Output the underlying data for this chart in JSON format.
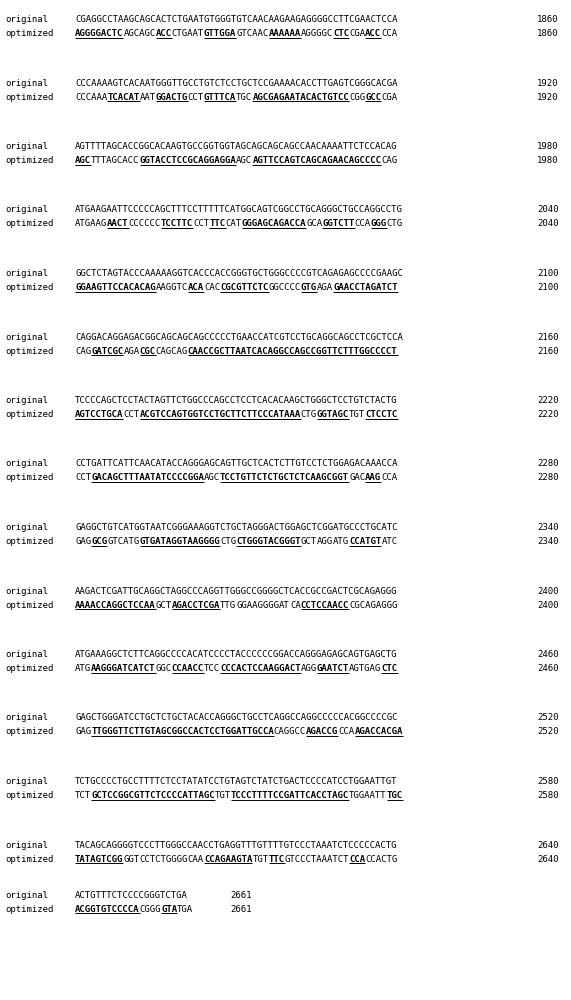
{
  "rows": [
    {
      "original": "CGAGGCCTAAGCAGCACTCTGAATGTGGGTGTCAACAAGAAGAGGGGCCTTCGAACTCCA",
      "optimized_parts": [
        {
          "text": "AGGGGACTC",
          "bold": true,
          "underline": true
        },
        {
          "text": "AGCAGC",
          "bold": false,
          "underline": false
        },
        {
          "text": "ACC",
          "bold": true,
          "underline": true
        },
        {
          "text": "CTGAAT",
          "bold": false,
          "underline": false
        },
        {
          "text": "GTTGGA",
          "bold": true,
          "underline": true
        },
        {
          "text": "GTCAAC",
          "bold": false,
          "underline": false
        },
        {
          "text": "AAAAAA",
          "bold": true,
          "underline": true
        },
        {
          "text": "AGGGGC",
          "bold": false,
          "underline": false
        },
        {
          "text": "CTC",
          "bold": true,
          "underline": true
        },
        {
          "text": "CGA",
          "bold": false,
          "underline": false
        },
        {
          "text": "ACC",
          "bold": true,
          "underline": true
        },
        {
          "text": "CCA",
          "bold": false,
          "underline": false
        }
      ],
      "number": 1860
    },
    {
      "original": "CCCAAAAGTCACAATGGGTTGCCTGTCTCCTGCTCCGAAAACACCTTGAGTCGGGCACGA",
      "optimized_parts": [
        {
          "text": "CCCAAA",
          "bold": false,
          "underline": false
        },
        {
          "text": "TCACAT",
          "bold": true,
          "underline": true
        },
        {
          "text": "AAT",
          "bold": false,
          "underline": false
        },
        {
          "text": "GGACTG",
          "bold": true,
          "underline": true
        },
        {
          "text": "CCT",
          "bold": false,
          "underline": false
        },
        {
          "text": "GTTTCA",
          "bold": true,
          "underline": true
        },
        {
          "text": "TGC",
          "bold": false,
          "underline": false
        },
        {
          "text": "AGCGAGAATACACTGTCC",
          "bold": true,
          "underline": true
        },
        {
          "text": "CGG",
          "bold": false,
          "underline": false
        },
        {
          "text": "GCC",
          "bold": true,
          "underline": true
        },
        {
          "text": "CGA",
          "bold": false,
          "underline": false
        }
      ],
      "number": 1920
    },
    {
      "original": "AGTTTTAGCACCGGCACAAGTGCCGGTGGTAGCAGCAGCAGCCAACAAAATTCTCCACAG",
      "optimized_parts": [
        {
          "text": "AGC",
          "bold": true,
          "underline": true
        },
        {
          "text": "TTTAGCACC",
          "bold": false,
          "underline": false
        },
        {
          "text": "GGTACCTCCGCAGGAGGA",
          "bold": true,
          "underline": true
        },
        {
          "text": "AGC",
          "bold": false,
          "underline": false
        },
        {
          "text": "AGTTCCAGTCAGCAGAACAGCCCC",
          "bold": true,
          "underline": true
        },
        {
          "text": "CAG",
          "bold": false,
          "underline": false
        }
      ],
      "number": 1980
    },
    {
      "original": "ATGAAGAATTCCCCCAGCTTTCCTTTTTCATGGCAGTCGGCCTGCAGGGCTGCCAGGCCTG",
      "optimized_parts": [
        {
          "text": "ATGAAG",
          "bold": false,
          "underline": false
        },
        {
          "text": "AACT",
          "bold": true,
          "underline": true
        },
        {
          "text": "CCCCCC",
          "bold": false,
          "underline": false
        },
        {
          "text": "TCCTTC",
          "bold": true,
          "underline": true
        },
        {
          "text": "CCT",
          "bold": false,
          "underline": false
        },
        {
          "text": "TTC",
          "bold": true,
          "underline": true
        },
        {
          "text": "CAT",
          "bold": false,
          "underline": false
        },
        {
          "text": "GGGAGCAGACCA",
          "bold": true,
          "underline": true
        },
        {
          "text": "GCA",
          "bold": false,
          "underline": false
        },
        {
          "text": "GGTCTT",
          "bold": true,
          "underline": true
        },
        {
          "text": "CCA",
          "bold": false,
          "underline": false
        },
        {
          "text": "GGG",
          "bold": true,
          "underline": true
        },
        {
          "text": "CTG",
          "bold": false,
          "underline": false
        }
      ],
      "number": 2040
    },
    {
      "original": "GGCTCTAGTACCCAAAAAGGTCACCCACCGGGTGCTGGGCCCCGTCAGAGAGCCCCGAAGC",
      "optimized_parts": [
        {
          "text": "GGAAGTTCCACACAG",
          "bold": true,
          "underline": true
        },
        {
          "text": "AAGGTC",
          "bold": false,
          "underline": false
        },
        {
          "text": "ACA",
          "bold": true,
          "underline": true
        },
        {
          "text": "CAC",
          "bold": false,
          "underline": false
        },
        {
          "text": "CGCGTTCTC",
          "bold": true,
          "underline": true
        },
        {
          "text": "GGCCCC",
          "bold": false,
          "underline": false
        },
        {
          "text": "GTG",
          "bold": true,
          "underline": true
        },
        {
          "text": "AGA",
          "bold": false,
          "underline": false
        },
        {
          "text": "GAACCTAGATCT",
          "bold": true,
          "underline": true
        }
      ],
      "number": 2100
    },
    {
      "original": "CAGGACAGGAGACGGCAGCAGCAGCCCCCTGAACCATCGTCCTGCAGGCAGCCTCGCTCCA",
      "optimized_parts": [
        {
          "text": "CAG",
          "bold": false,
          "underline": false
        },
        {
          "text": "GATCGC",
          "bold": true,
          "underline": true
        },
        {
          "text": "AGA",
          "bold": false,
          "underline": false
        },
        {
          "text": "CGC",
          "bold": true,
          "underline": true
        },
        {
          "text": "CAGCAG",
          "bold": false,
          "underline": false
        },
        {
          "text": "CAACCGCTTAATCACAGGCCAGCCGGTTCTTTGGCCCCT",
          "bold": true,
          "underline": true
        }
      ],
      "number": 2160
    },
    {
      "original": "TCCCCAGCTCCTACTAGTTCTGGCCCAGCCTCCTCACACAAGCTGGGCTCCTGTCTACTG",
      "optimized_parts": [
        {
          "text": "AGTCCTGCA",
          "bold": true,
          "underline": true
        },
        {
          "text": "CCT",
          "bold": false,
          "underline": false
        },
        {
          "text": "ACGTCCAGTGGTCCTGCTTCTTCCCATAAA",
          "bold": true,
          "underline": true
        },
        {
          "text": "CTG",
          "bold": false,
          "underline": false
        },
        {
          "text": "GGTAGC",
          "bold": true,
          "underline": true
        },
        {
          "text": "TGT",
          "bold": false,
          "underline": false
        },
        {
          "text": "CTCCTC",
          "bold": true,
          "underline": true
        }
      ],
      "number": 2220
    },
    {
      "original": "CCTGATTCATTCAACATACCAGGGAGCAGTTGCTCACTCTTGTCCTCTGGAGACAAACCA",
      "optimized_parts": [
        {
          "text": "CCT",
          "bold": false,
          "underline": false
        },
        {
          "text": "GACAGCTTTAATATCCCCGGA",
          "bold": true,
          "underline": true
        },
        {
          "text": "AGC",
          "bold": false,
          "underline": false
        },
        {
          "text": "TCCTGTTCTCTGCTCTCAAGCGGT",
          "bold": true,
          "underline": true
        },
        {
          "text": "GAC",
          "bold": false,
          "underline": false
        },
        {
          "text": "AAG",
          "bold": true,
          "underline": true
        },
        {
          "text": "CCA",
          "bold": false,
          "underline": false
        }
      ],
      "number": 2280
    },
    {
      "original": "GAGGCTGTCATGGTAATCGGGAAAGGTCTGCTAGGGACTGGAGCTCGGATGCCCTGCATC",
      "optimized_parts": [
        {
          "text": "GAG",
          "bold": false,
          "underline": false
        },
        {
          "text": "GCG",
          "bold": true,
          "underline": true
        },
        {
          "text": "GTCATG",
          "bold": false,
          "underline": false
        },
        {
          "text": "GTGATAGGTAAGGGG",
          "bold": true,
          "underline": true
        },
        {
          "text": "CTG",
          "bold": false,
          "underline": false
        },
        {
          "text": "CTGGGTACGGGT",
          "bold": true,
          "underline": true
        },
        {
          "text": "GCT",
          "bold": false,
          "underline": false
        },
        {
          "text": "AGG",
          "bold": false,
          "underline": false
        },
        {
          "text": "ATG",
          "bold": false,
          "underline": false
        },
        {
          "text": "CCATGT",
          "bold": true,
          "underline": true
        },
        {
          "text": "ATC",
          "bold": false,
          "underline": false
        }
      ],
      "number": 2340
    },
    {
      "original": "AAGACTCGATTGCAGGCTAGGCCCAGGTTGGGCCGGGGCTCACCGCCGACTCGCAGAGGG",
      "optimized_parts": [
        {
          "text": "AAAACCAGGCTCCAA",
          "bold": true,
          "underline": true
        },
        {
          "text": "GCT",
          "bold": false,
          "underline": false
        },
        {
          "text": "AGACCTCGA",
          "bold": true,
          "underline": true
        },
        {
          "text": "TTG",
          "bold": false,
          "underline": false
        },
        {
          "text": "GGAAGGGG",
          "bold": false,
          "underline": false
        },
        {
          "text": "AT",
          "bold": false,
          "underline": false
        },
        {
          "text": "CA",
          "bold": false,
          "underline": false
        },
        {
          "text": "CCTCCAACC",
          "bold": true,
          "underline": true
        },
        {
          "text": "CGCAGAGGG",
          "bold": false,
          "underline": false
        }
      ],
      "number": 2400
    },
    {
      "original": "ATGAAAGGCTCTTCAGGCCCCACATCCCCTACCCCCCGGACCAGGGAGAGCAGTGAGCTG",
      "optimized_parts": [
        {
          "text": "ATG",
          "bold": false,
          "underline": false
        },
        {
          "text": "AAGGGATCATCT",
          "bold": true,
          "underline": true
        },
        {
          "text": "GGC",
          "bold": false,
          "underline": false
        },
        {
          "text": "CCAACC",
          "bold": true,
          "underline": true
        },
        {
          "text": "TCC",
          "bold": false,
          "underline": false
        },
        {
          "text": "CCCACTCCAAGGACT",
          "bold": true,
          "underline": true
        },
        {
          "text": "AGG",
          "bold": false,
          "underline": false
        },
        {
          "text": "GAATCT",
          "bold": true,
          "underline": true
        },
        {
          "text": "AGTGAG",
          "bold": false,
          "underline": false
        },
        {
          "text": "CTC",
          "bold": true,
          "underline": true
        }
      ],
      "number": 2460
    },
    {
      "original": "GAGCTGGGATCCTGCTCTGCTACACCAGGGCTGCCTCAGGCCAGGCCCCCACGGCCCCGC",
      "optimized_parts": [
        {
          "text": "GAG",
          "bold": false,
          "underline": false
        },
        {
          "text": "TTGGGTTCTTGTAGCGGCCACTCCTGGATTGCCA",
          "bold": true,
          "underline": true
        },
        {
          "text": "CAGGCC",
          "bold": false,
          "underline": false
        },
        {
          "text": "AGACCG",
          "bold": true,
          "underline": true
        },
        {
          "text": "CCA",
          "bold": false,
          "underline": false
        },
        {
          "text": "AGACCACGA",
          "bold": true,
          "underline": true
        }
      ],
      "number": 2520
    },
    {
      "original": "TCTGCCCCTGCCTTTTCTCCTATATCCTGTAGTCTATCTGACTCCCCATCCTGGAATTGT",
      "optimized_parts": [
        {
          "text": "TCT",
          "bold": false,
          "underline": false
        },
        {
          "text": "GCTCCGGCGTTCTCCCCATTAGC",
          "bold": true,
          "underline": true
        },
        {
          "text": "TGT",
          "bold": false,
          "underline": false
        },
        {
          "text": "TCCCTTTTCCGATTCACCTAGC",
          "bold": true,
          "underline": true
        },
        {
          "text": "TGGAATT",
          "bold": false,
          "underline": false
        },
        {
          "text": "TGC",
          "bold": true,
          "underline": true
        }
      ],
      "number": 2580
    },
    {
      "original": "TACAGCAGGGGTCCCTTGGGCCAACCTGAGGTTTGTTTTGTCCCTAAATCTCCCCCACTG",
      "optimized_parts": [
        {
          "text": "TATAGTCGG",
          "bold": true,
          "underline": true
        },
        {
          "text": "GGT",
          "bold": false,
          "underline": false
        },
        {
          "text": "CCTCTGGGG",
          "bold": false,
          "underline": false
        },
        {
          "text": "CAA",
          "bold": false,
          "underline": false
        },
        {
          "text": "CCAGAAGTA",
          "bold": true,
          "underline": true
        },
        {
          "text": "TGT",
          "bold": false,
          "underline": false
        },
        {
          "text": "TTC",
          "bold": true,
          "underline": true
        },
        {
          "text": "GTCCCTAAATCT",
          "bold": false,
          "underline": false
        },
        {
          "text": "CCA",
          "bold": true,
          "underline": true
        },
        {
          "text": "CCACTG",
          "bold": false,
          "underline": false
        }
      ],
      "number": 2640
    },
    {
      "original": "ACTGTTTCTCCCCGGGTCTGA",
      "optimized_parts": [
        {
          "text": "ACGGTGTCCCCA",
          "bold": true,
          "underline": true
        },
        {
          "text": "CGGG",
          "bold": false,
          "underline": false
        },
        {
          "text": "GTA",
          "bold": true,
          "underline": true
        },
        {
          "text": "TGA",
          "bold": false,
          "underline": false
        }
      ],
      "number": 2661,
      "short": true
    }
  ],
  "label_original": "original",
  "label_optimized": "optimized",
  "font_family": "monospace",
  "seq_fontsize": 6.5,
  "label_fontsize": 6.5,
  "number_fontsize": 6.5,
  "bg_color": "#ffffff",
  "text_color": "#000000"
}
